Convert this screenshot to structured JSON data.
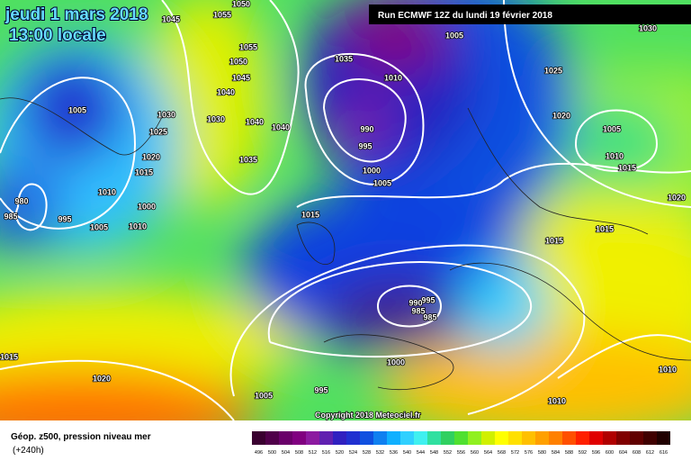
{
  "header": {
    "date": "jeudi 1 mars 2018",
    "time": "13:00 locale",
    "run": "Run ECMWF 12Z du lundi 19 février 2018"
  },
  "copyright": "Copyright 2018 Meteociel.fr",
  "legend": {
    "title": "Géop. z500, pression niveau mer",
    "lead": "(+240h)",
    "scale": {
      "values": [
        496,
        500,
        504,
        508,
        512,
        516,
        520,
        524,
        528,
        532,
        536,
        540,
        544,
        548,
        552,
        556,
        560,
        564,
        568,
        572,
        576,
        580,
        584,
        588,
        592,
        596,
        600,
        604,
        608,
        612,
        616
      ],
      "colors": [
        "#3a0030",
        "#50004a",
        "#6a006a",
        "#800080",
        "#8c1aa0",
        "#6020b0",
        "#3020c0",
        "#2030d0",
        "#1050e0",
        "#1080f0",
        "#10b0ff",
        "#30d0ff",
        "#40f0f0",
        "#30e0a0",
        "#30d060",
        "#50e030",
        "#90f020",
        "#d0f000",
        "#ffff00",
        "#ffe000",
        "#ffc000",
        "#ffa000",
        "#ff8000",
        "#ff5000",
        "#ff2000",
        "#e00000",
        "#b00000",
        "#800000",
        "#600000",
        "#400000",
        "#200000"
      ]
    }
  },
  "isobar_labels": [
    "1045",
    "1055",
    "1050",
    "1005",
    "1030",
    "1055",
    "1050",
    "1045",
    "1040",
    "1035",
    "1010",
    "1025",
    "1005",
    "1030",
    "1030",
    "1040",
    "1040",
    "990",
    "1020",
    "1005",
    "1025",
    "995",
    "1020",
    "1035",
    "1010",
    "1015",
    "1015",
    "1000",
    "1005",
    "1010",
    "1020",
    "980",
    "1000",
    "1015",
    "985",
    "995",
    "1005",
    "1010",
    "1015",
    "1015",
    "995",
    "990",
    "985",
    "985",
    "1015",
    "1000",
    "1010",
    "1020",
    "1005",
    "995",
    "1010"
  ]
}
